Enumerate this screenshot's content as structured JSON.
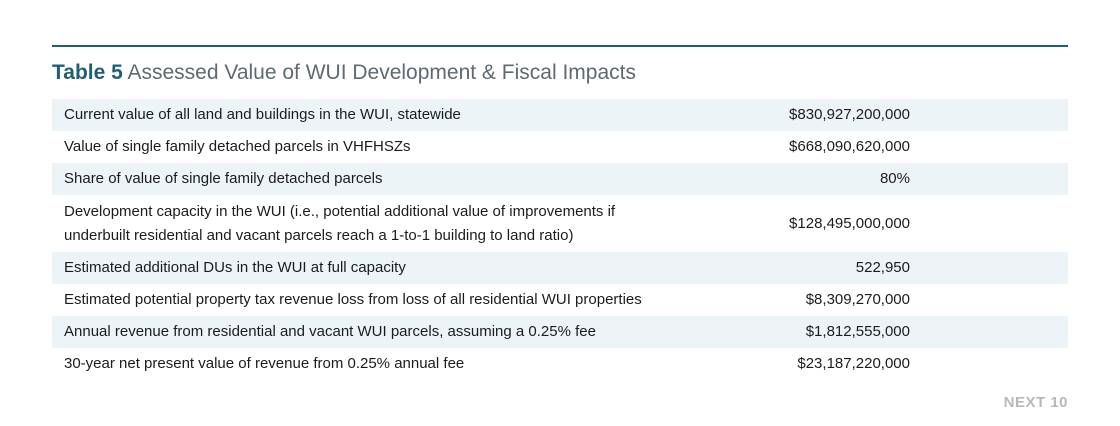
{
  "header": {
    "table_label": "Table 5",
    "title": "Assessed Value of WUI Development & Fiscal Impacts"
  },
  "rows": [
    {
      "description": "Current value of all land and buildings in the WUI, statewide",
      "value": "$830,927,200,000"
    },
    {
      "description": "Value of single family detached parcels in VHFHSZs",
      "value": "$668,090,620,000"
    },
    {
      "description": "Share of value of single family detached parcels",
      "value": "80%"
    },
    {
      "description_line1": "Development capacity in the WUI (i.e., potential additional value of improvements if",
      "description_line2": "underbuilt residential and vacant parcels reach a 1-to-1 building to land ratio)",
      "value": "$128,495,000,000"
    },
    {
      "description": "Estimated additional DUs in the WUI at full capacity",
      "value": "522,950"
    },
    {
      "description": "Estimated potential property tax revenue loss from loss of all residential WUI properties",
      "value": "$8,309,270,000"
    },
    {
      "description": "Annual revenue from residential and vacant WUI parcels, assuming a 0.25% fee",
      "value": "$1,812,555,000"
    },
    {
      "description": "30-year net present value of revenue from 0.25% annual fee",
      "value": "$23,187,220,000"
    }
  ],
  "footer": {
    "brand": "NEXT 10"
  },
  "colors": {
    "accent": "#1f5f73",
    "row_stripe": "#edf4f7",
    "title_gray": "#5d6a72",
    "footer_gray": "#b8b8b8"
  }
}
